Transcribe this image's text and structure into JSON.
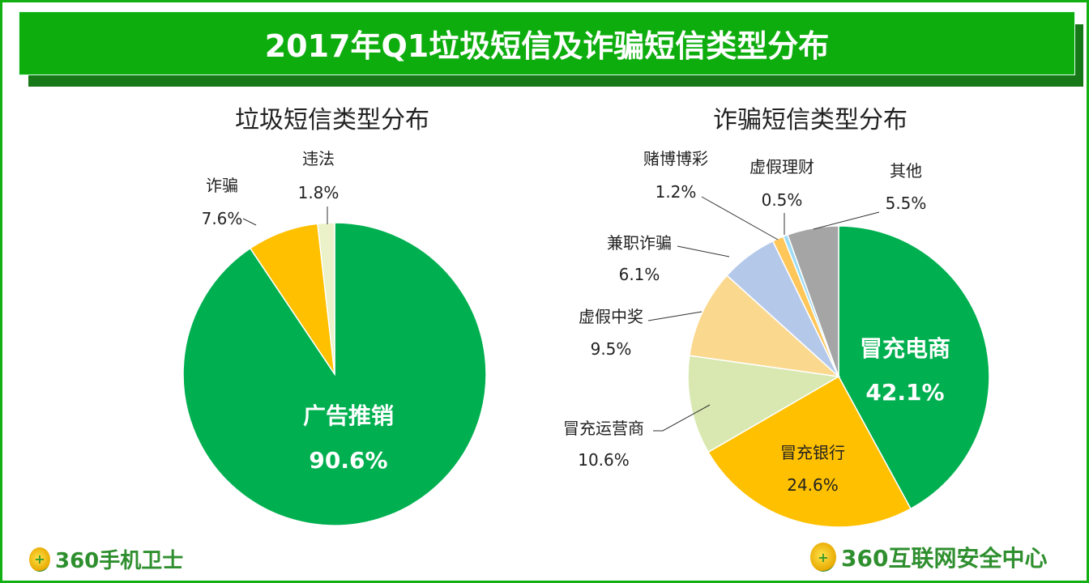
{
  "title": "2017年Q1垃圾短信及诈骗短信类型分布",
  "chart_data": [
    {
      "type": "pie",
      "title": "垃圾短信类型分布",
      "categories": [
        "广告推销",
        "诈骗",
        "违法"
      ],
      "values": [
        90.6,
        7.6,
        1.8
      ],
      "labels": [
        "90.6%",
        "7.6%",
        "1.8%"
      ],
      "colors": [
        "#00B050",
        "#FFC000",
        "#EBF1C8"
      ],
      "start": "12 o'clock, clockwise"
    },
    {
      "type": "pie",
      "title": "诈骗短信类型分布",
      "categories": [
        "冒充电商",
        "冒充银行",
        "冒充运营商",
        "虚假中奖",
        "兼职诈骗",
        "赌博博彩",
        "虚假理财",
        "其他"
      ],
      "values": [
        42.1,
        24.6,
        10.6,
        9.5,
        6.1,
        1.2,
        0.5,
        5.5
      ],
      "labels": [
        "42.1%",
        "24.6%",
        "10.6%",
        "9.5%",
        "6.1%",
        "1.2%",
        "0.5%",
        "5.5%"
      ],
      "colors": [
        "#00B050",
        "#FFC000",
        "#D8E8B0",
        "#FAD88E",
        "#B4C9EA",
        "#FFC65A",
        "#9DDCF5",
        "#A5A5A5"
      ],
      "start": "12 o'clock, clockwise"
    }
  ],
  "logos": {
    "left": "360手机卫士",
    "right": "360互联网安全中心"
  }
}
